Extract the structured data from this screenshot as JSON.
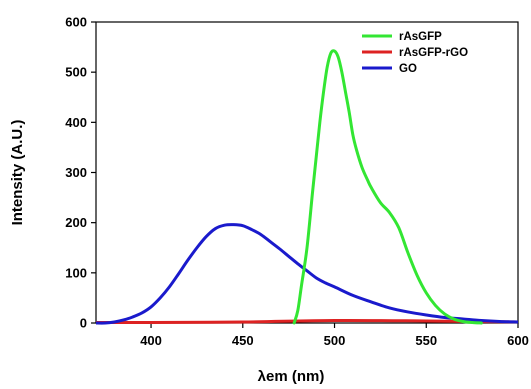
{
  "chart_data": {
    "type": "line",
    "xlabel": "λem (nm)",
    "ylabel": "Intensity (A.U.)",
    "xlim": [
      370,
      600
    ],
    "ylim": [
      0,
      600
    ],
    "xticks": [
      400,
      450,
      500,
      550,
      600
    ],
    "yticks": [
      0,
      100,
      200,
      300,
      400,
      500,
      600
    ],
    "legend_position": "top-right",
    "grid": false,
    "series": [
      {
        "name": "rAsGFP",
        "color": "#33e633",
        "x": [
          478,
          480,
          482,
          485,
          488,
          490,
          492,
          494,
          496,
          498,
          500,
          502,
          504,
          506,
          508,
          510,
          512,
          515,
          518,
          520,
          525,
          530,
          535,
          540,
          545,
          550,
          555,
          560,
          565,
          570,
          575,
          580
        ],
        "y": [
          0,
          25,
          75,
          150,
          260,
          330,
          400,
          460,
          510,
          538,
          542,
          530,
          500,
          460,
          420,
          375,
          345,
          310,
          285,
          270,
          240,
          220,
          190,
          140,
          95,
          60,
          35,
          18,
          8,
          3,
          1,
          0
        ]
      },
      {
        "name": "rAsGFP-rGO",
        "color": "#dd2222",
        "x": [
          370,
          400,
          450,
          500,
          550,
          600
        ],
        "y": [
          1,
          1,
          2,
          5,
          4,
          2
        ]
      },
      {
        "name": "GO",
        "color": "#1a1acc",
        "x": [
          370,
          375,
          380,
          385,
          390,
          395,
          400,
          405,
          410,
          415,
          420,
          425,
          430,
          435,
          440,
          445,
          450,
          455,
          460,
          465,
          470,
          475,
          480,
          485,
          490,
          495,
          500,
          510,
          520,
          530,
          540,
          550,
          560,
          570,
          580,
          590,
          600
        ],
        "y": [
          0,
          0,
          2,
          6,
          12,
          20,
          32,
          50,
          72,
          98,
          125,
          150,
          172,
          188,
          195,
          196,
          194,
          186,
          176,
          162,
          148,
          133,
          118,
          104,
          90,
          80,
          72,
          55,
          42,
          30,
          22,
          16,
          11,
          8,
          5,
          3,
          2
        ]
      }
    ]
  }
}
